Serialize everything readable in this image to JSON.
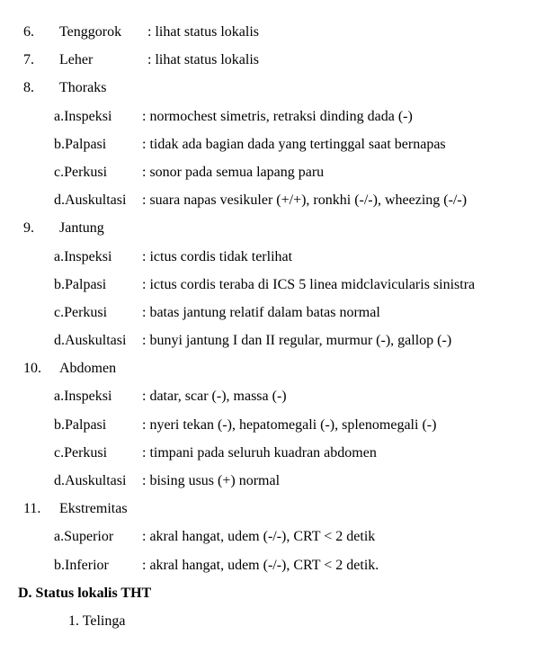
{
  "items": [
    {
      "num": "6.",
      "label": "Tenggorok",
      "value": ": lihat status lokalis"
    },
    {
      "num": "7.",
      "label": "Leher",
      "value": ": lihat status lokalis"
    },
    {
      "num": "8.",
      "label": "Thoraks",
      "value": ""
    }
  ],
  "thoraks": [
    {
      "label": "a.Inspeksi",
      "value": ": normochest simetris, retraksi dinding dada (-)"
    },
    {
      "label": "b.Palpasi",
      "value": ": tidak ada bagian dada yang tertinggal saat bernapas"
    },
    {
      "label": "c.Perkusi",
      "value": ": sonor pada semua lapang paru"
    },
    {
      "label": "d.Auskultasi",
      "value": ": suara napas vesikuler (+/+), ronkhi (-/-), wheezing (-/-)"
    }
  ],
  "jantung_num": "9.",
  "jantung_label": "Jantung",
  "jantung": [
    {
      "label": "a.Inspeksi",
      "value": ": ictus cordis tidak terlihat"
    },
    {
      "label": "b.Palpasi",
      "value": ": ictus cordis teraba di ICS 5 linea midclavicularis sinistra"
    },
    {
      "label": "c.Perkusi",
      "value": ": batas jantung relatif dalam batas normal"
    },
    {
      "label": "d.Auskultasi",
      "value": ": bunyi jantung I dan II regular, murmur (-), gallop (-)"
    }
  ],
  "abdomen_num": "10.",
  "abdomen_label": "Abdomen",
  "abdomen": [
    {
      "label": "a.Inspeksi",
      "value": ": datar, scar (-), massa (-)"
    },
    {
      "label": "b.Palpasi",
      "value": ": nyeri tekan (-), hepatomegali (-), splenomegali (-)"
    },
    {
      "label": "c.Perkusi",
      "value": ": timpani pada seluruh kuadran abdomen"
    },
    {
      "label": "d.Auskultasi",
      "value": ": bising usus (+) normal"
    }
  ],
  "ekstremitas_num": "11.",
  "ekstremitas_label": "Ekstremitas",
  "ekstremitas": [
    {
      "label": "a.Superior",
      "value": ": akral hangat, udem (-/-), CRT < 2 detik"
    },
    {
      "label": "b.Inferior",
      "value": ": akral hangat, udem (-/-), CRT < 2 detik."
    }
  ],
  "section_d": "D. Status lokalis THT",
  "telinga": "1. Telinga"
}
